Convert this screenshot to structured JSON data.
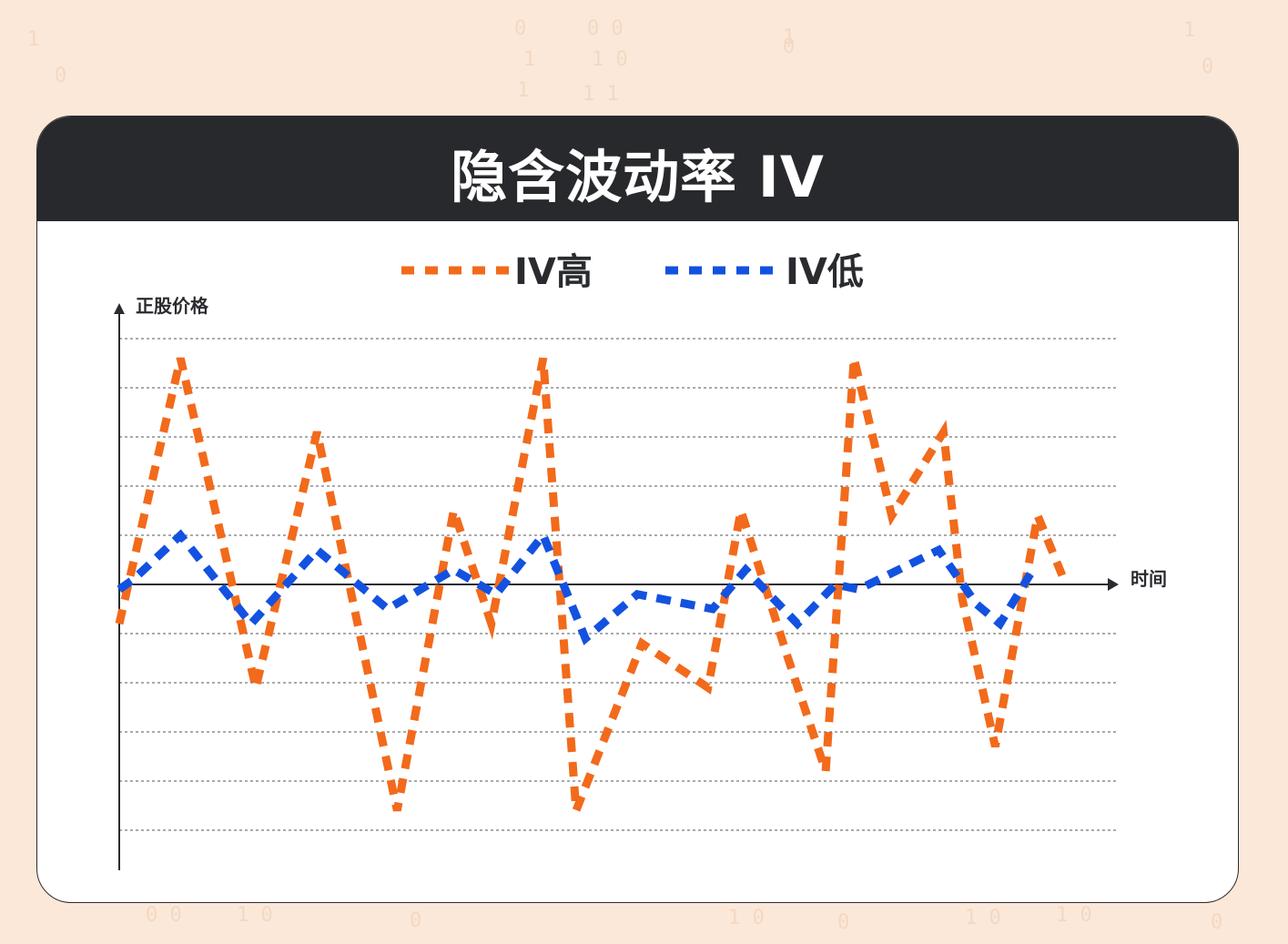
{
  "title": "隐含波动率 IV",
  "colors": {
    "background": "#fbe8d8",
    "header": "#28292d",
    "card": "#ffffff",
    "iv_high": "#f26a1b",
    "iv_low": "#1352e0",
    "grid": "#555555",
    "axis": "#2a2b2f"
  },
  "chart_data": {
    "type": "line",
    "title": "隐含波动率 IV",
    "xlabel": "时间",
    "ylabel": "正股价格",
    "legend_position": "top-center",
    "grid": true,
    "ylim": [
      -5,
      5
    ],
    "line_style": "dashed",
    "series": [
      {
        "name": "IV高",
        "color": "#f26a1b",
        "x": [
          0,
          1.3,
          2.9,
          4.2,
          5.9,
          7.1,
          7.9,
          9.0,
          9.7,
          11.1,
          12.5,
          13.2,
          14.2,
          15.0,
          15.6,
          16.4,
          17.5,
          17.9,
          18.6,
          19.5,
          20.1
        ],
        "values": [
          -0.8,
          4.6,
          -2.1,
          3.1,
          -4.6,
          1.5,
          -0.8,
          4.6,
          -4.6,
          -1.2,
          -2.1,
          1.5,
          -1.5,
          -3.8,
          4.6,
          1.4,
          3.1,
          -0.3,
          -3.3,
          1.4,
          0.0
        ]
      },
      {
        "name": "IV低",
        "color": "#1352e0",
        "x": [
          0,
          0.3,
          1.3,
          2.8,
          4.2,
          5.7,
          7.1,
          8.0,
          9.0,
          9.9,
          11.0,
          12.6,
          13.3,
          14.4,
          15.2,
          15.7,
          17.4,
          18.2,
          18.7,
          19.4
        ],
        "values": [
          -0.1,
          0.1,
          1.0,
          -0.8,
          0.7,
          -0.5,
          0.3,
          -0.2,
          1.0,
          -1.1,
          -0.2,
          -0.5,
          0.3,
          -0.8,
          0.0,
          -0.1,
          0.7,
          -0.4,
          -0.8,
          0.3
        ]
      }
    ]
  }
}
